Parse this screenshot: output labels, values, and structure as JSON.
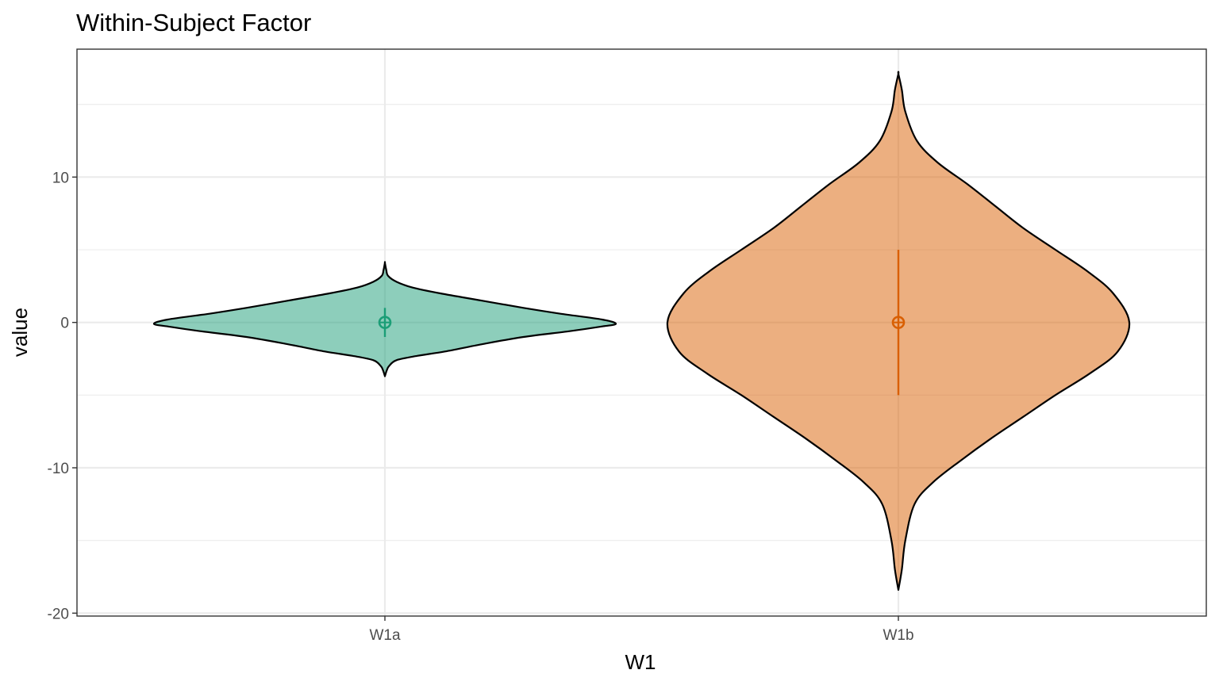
{
  "chart_data": {
    "type": "violin",
    "title": "Within-Subject Factor",
    "xlabel": "W1",
    "ylabel": "value",
    "categories": [
      "W1a",
      "W1b"
    ],
    "ylim": [
      -20.2,
      18.8
    ],
    "y_ticks": [
      -20,
      -10,
      0,
      10
    ],
    "y_minor_ticks": [
      -15,
      -5,
      5,
      15
    ],
    "grid": true,
    "colors": {
      "W1a": "#1b9e77",
      "W1b": "#d95f02"
    },
    "fill_opacity": 0.5,
    "series": [
      {
        "category": "W1a",
        "summary": {
          "mean": 0,
          "error_low": -1,
          "error_high": 1
        },
        "min": -3.7,
        "max": 4.1,
        "density_profile": [
          [
            -3.7,
            0.0
          ],
          [
            -3.3,
            0.008
          ],
          [
            -3.0,
            0.018
          ],
          [
            -2.6,
            0.05
          ],
          [
            -2.3,
            0.14
          ],
          [
            -2.0,
            0.26
          ],
          [
            -1.5,
            0.42
          ],
          [
            -1.0,
            0.6
          ],
          [
            -0.6,
            0.8
          ],
          [
            -0.3,
            0.93
          ],
          [
            -0.1,
            1.0
          ],
          [
            0.2,
            0.94
          ],
          [
            0.6,
            0.76
          ],
          [
            1.0,
            0.6
          ],
          [
            1.5,
            0.42
          ],
          [
            2.0,
            0.24
          ],
          [
            2.4,
            0.12
          ],
          [
            2.8,
            0.05
          ],
          [
            3.2,
            0.014
          ],
          [
            3.6,
            0.006
          ],
          [
            4.1,
            0.0
          ]
        ]
      },
      {
        "category": "W1b",
        "summary": {
          "mean": 0,
          "error_low": -5,
          "error_high": 5
        },
        "min": -18.4,
        "max": 17.1,
        "density_profile": [
          [
            -18.4,
            0.0
          ],
          [
            -17.0,
            0.015
          ],
          [
            -15.0,
            0.03
          ],
          [
            -12.5,
            0.07
          ],
          [
            -11.0,
            0.15
          ],
          [
            -9.5,
            0.27
          ],
          [
            -8.0,
            0.4
          ],
          [
            -6.5,
            0.54
          ],
          [
            -5.0,
            0.68
          ],
          [
            -3.5,
            0.83
          ],
          [
            -2.0,
            0.95
          ],
          [
            0.0,
            1.0
          ],
          [
            2.0,
            0.93
          ],
          [
            3.5,
            0.82
          ],
          [
            5.0,
            0.68
          ],
          [
            6.5,
            0.54
          ],
          [
            8.0,
            0.42
          ],
          [
            9.5,
            0.3
          ],
          [
            11.0,
            0.17
          ],
          [
            12.5,
            0.08
          ],
          [
            14.5,
            0.03
          ],
          [
            16.0,
            0.015
          ],
          [
            17.1,
            0.0
          ]
        ]
      }
    ]
  }
}
